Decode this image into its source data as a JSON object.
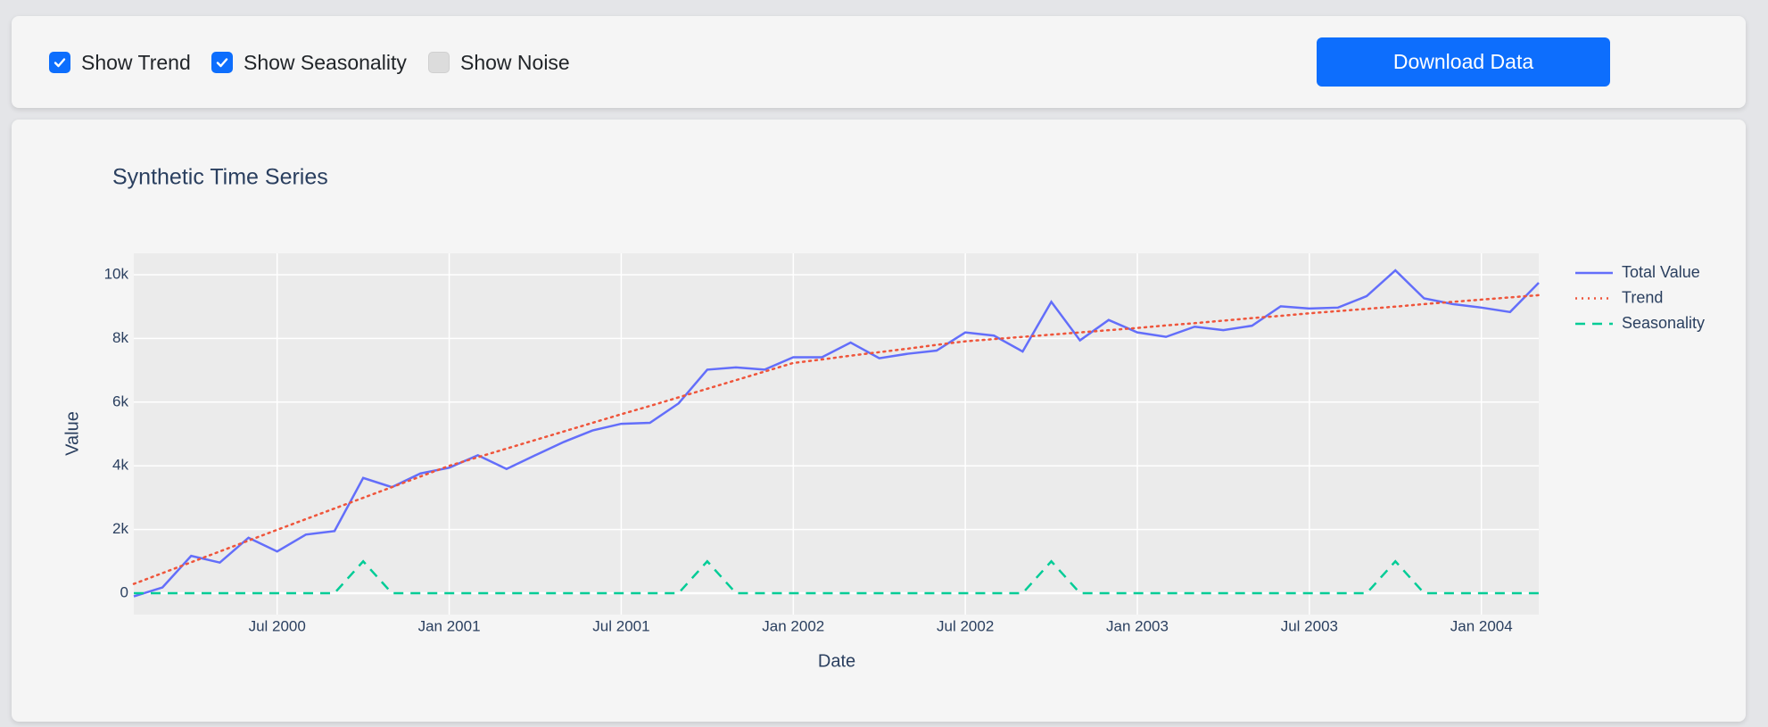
{
  "controls": {
    "checkboxes": [
      {
        "label": "Show Trend",
        "checked": true
      },
      {
        "label": "Show Seasonality",
        "checked": true
      },
      {
        "label": "Show Noise",
        "checked": false
      }
    ],
    "button": "Download Data"
  },
  "chart_data": {
    "type": "line",
    "title": "Synthetic Time Series",
    "x_label": "Date",
    "y_label": "Value",
    "x": [
      "2000-01",
      "2000-02",
      "2000-03",
      "2000-04",
      "2000-05",
      "2000-06",
      "2000-07",
      "2000-08",
      "2000-09",
      "2000-10",
      "2000-11",
      "2000-12",
      "2001-01",
      "2001-02",
      "2001-03",
      "2001-04",
      "2001-05",
      "2001-06",
      "2001-07",
      "2001-08",
      "2001-09",
      "2001-10",
      "2001-11",
      "2001-12",
      "2002-01",
      "2002-02",
      "2002-03",
      "2002-04",
      "2002-05",
      "2002-06",
      "2002-07",
      "2002-08",
      "2002-09",
      "2002-10",
      "2002-11",
      "2002-12",
      "2003-01",
      "2003-02",
      "2003-03",
      "2003-04",
      "2003-05",
      "2003-06",
      "2003-07",
      "2003-08",
      "2003-09",
      "2003-10",
      "2003-11",
      "2003-12",
      "2004-01",
      "2004-02"
    ],
    "xlim": [
      "2000-01",
      "2004-02"
    ],
    "xticks": [
      {
        "value": "2000-07",
        "label": "Jul 2000"
      },
      {
        "value": "2001-01",
        "label": "Jan 2001"
      },
      {
        "value": "2001-07",
        "label": "Jul 2001"
      },
      {
        "value": "2002-01",
        "label": "Jan 2002"
      },
      {
        "value": "2002-07",
        "label": "Jul 2002"
      },
      {
        "value": "2003-01",
        "label": "Jan 2003"
      },
      {
        "value": "2003-07",
        "label": "Jul 2003"
      },
      {
        "value": "2004-01",
        "label": "Jan 2004"
      }
    ],
    "ylim": [
      -674,
      10674
    ],
    "yticks": [
      0,
      {
        "value": 2000,
        "label": "2k"
      },
      {
        "value": 4000,
        "label": "4k"
      },
      {
        "value": 6000,
        "label": "6k"
      },
      {
        "value": 8000,
        "label": "8k"
      },
      {
        "value": 10000,
        "label": "10k"
      }
    ],
    "grid": true,
    "legend": "right",
    "series": [
      {
        "name": "Total Value",
        "color": "#636efa",
        "dash": "solid",
        "values": [
          -100,
          180,
          1170,
          960,
          1740,
          1310,
          1840,
          1950,
          3620,
          3330,
          3760,
          3940,
          4330,
          3900,
          4330,
          4750,
          5110,
          5320,
          5350,
          5960,
          7020,
          7090,
          7020,
          7410,
          7410,
          7870,
          7380,
          7520,
          7620,
          8190,
          8090,
          7590,
          9150,
          7940,
          8580,
          8190,
          8050,
          8370,
          8260,
          8400,
          9010,
          8940,
          8970,
          9330,
          10140,
          9260,
          9080,
          8970,
          8830,
          9750
        ]
      },
      {
        "name": "Trend",
        "color": "#ef553b",
        "dash": "dot",
        "values": [
          290,
          630,
          970,
          1310,
          1650,
          1990,
          2325,
          2660,
          2995,
          3330,
          3665,
          4000,
          4270,
          4540,
          4810,
          5080,
          5350,
          5620,
          5880,
          6150,
          6420,
          6690,
          6960,
          7230,
          7340,
          7460,
          7570,
          7680,
          7800,
          7910,
          7980,
          8050,
          8120,
          8190,
          8260,
          8330,
          8410,
          8480,
          8560,
          8640,
          8710,
          8790,
          8860,
          8930,
          9000,
          9080,
          9150,
          9220,
          9290,
          9360
        ]
      },
      {
        "name": "Seasonality",
        "color": "#00cc96",
        "dash": "dash",
        "values": [
          0,
          0,
          0,
          0,
          0,
          0,
          0,
          0,
          1000,
          0,
          0,
          0,
          0,
          0,
          0,
          0,
          0,
          0,
          0,
          0,
          1000,
          0,
          0,
          0,
          0,
          0,
          0,
          0,
          0,
          0,
          0,
          0,
          1000,
          0,
          0,
          0,
          0,
          0,
          0,
          0,
          0,
          0,
          0,
          0,
          1000,
          0,
          0,
          0,
          0,
          0
        ]
      }
    ]
  }
}
